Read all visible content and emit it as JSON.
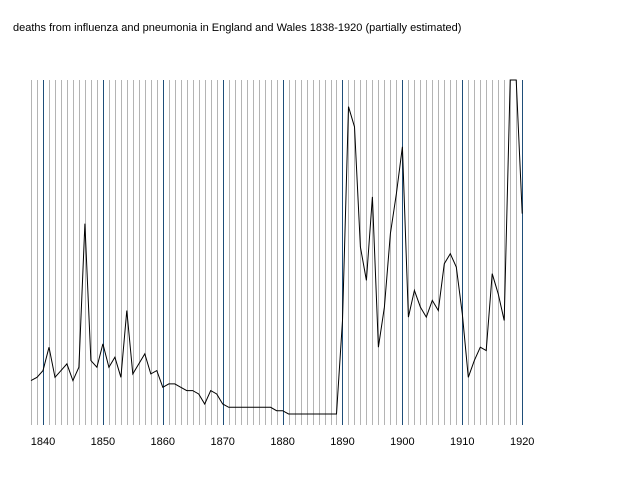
{
  "chart_data": {
    "type": "line",
    "title": "deaths from influenza and pneumonia in England and Wales 1838-1920 (partially estimated)",
    "xlabel": "",
    "ylabel": "",
    "xlim": [
      1838,
      1920
    ],
    "ylim": [
      0,
      100
    ],
    "x_ticks": [
      1840,
      1850,
      1860,
      1870,
      1880,
      1890,
      1900,
      1910,
      1920
    ],
    "grid": true,
    "colors": {
      "minor_grid": "#b4b4b4",
      "major_grid": "#1f4e79",
      "line": "#000000",
      "background": "#ffffff"
    },
    "series": [
      {
        "values_note": "relative values; y axis is unlabelled",
        "x": [
          1838,
          1839,
          1840,
          1841,
          1842,
          1843,
          1844,
          1845,
          1846,
          1847,
          1848,
          1849,
          1850,
          1851,
          1852,
          1853,
          1854,
          1855,
          1856,
          1857,
          1858,
          1859,
          1860,
          1861,
          1862,
          1863,
          1864,
          1865,
          1866,
          1867,
          1868,
          1869,
          1870,
          1871,
          1872,
          1873,
          1874,
          1875,
          1876,
          1877,
          1878,
          1879,
          1880,
          1881,
          1882,
          1883,
          1884,
          1885,
          1886,
          1887,
          1888,
          1889,
          1890,
          1891,
          1892,
          1893,
          1894,
          1895,
          1896,
          1897,
          1898,
          1899,
          1900,
          1901,
          1902,
          1903,
          1904,
          1905,
          1906,
          1907,
          1908,
          1909,
          1910,
          1911,
          1912,
          1913,
          1914,
          1915,
          1916,
          1917,
          1918,
          1919,
          1920
        ],
        "y": [
          10,
          11,
          13,
          20,
          11,
          13,
          15,
          10,
          14,
          57,
          16,
          14,
          21,
          14,
          17,
          11,
          31,
          12,
          15,
          18,
          12,
          13,
          8,
          9,
          9,
          8,
          7,
          7,
          6,
          3,
          7,
          6,
          3,
          2,
          2,
          2,
          2,
          2,
          2,
          2,
          2,
          1,
          1,
          0,
          0,
          0,
          0,
          0,
          0,
          0,
          0,
          0,
          28,
          92,
          86,
          50,
          40,
          65,
          20,
          32,
          54,
          66,
          80,
          29,
          37,
          32,
          29,
          34,
          31,
          45,
          48,
          44,
          30,
          11,
          16,
          20,
          19,
          42,
          36,
          28,
          100,
          100,
          60
        ]
      }
    ]
  }
}
